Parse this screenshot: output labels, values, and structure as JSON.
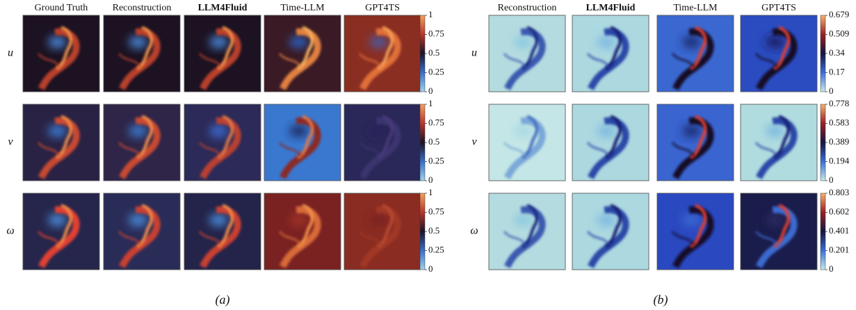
{
  "panels": [
    {
      "columns": [
        "Ground Truth",
        "Reconstruction",
        "LLM4Fluid",
        "Time-LLM",
        "GPT4TS"
      ],
      "rows": [
        {
          "label": "u",
          "colorbar_ticks": [
            0,
            0.25,
            0.5,
            0.75,
            1
          ]
        },
        {
          "label": "v",
          "colorbar_ticks": [
            0,
            0.25,
            0.5,
            0.75,
            1
          ]
        },
        {
          "label": "ω",
          "colorbar_ticks": [
            0,
            0.25,
            0.5,
            0.75,
            1
          ]
        }
      ],
      "caption": "(a)"
    },
    {
      "columns": [
        "Reconstruction",
        "LLM4Fluid",
        "Time-LLM",
        "GPT4TS"
      ],
      "rows": [
        {
          "label": "u",
          "colorbar_ticks": [
            0,
            0.17,
            0.34,
            0.509,
            0.679
          ]
        },
        {
          "label": "v",
          "colorbar_ticks": [
            0,
            0.194,
            0.389,
            0.583,
            0.778
          ]
        },
        {
          "label": "ω",
          "colorbar_ticks": [
            0,
            0.201,
            0.401,
            0.602,
            0.803
          ]
        }
      ],
      "caption": "(b)"
    }
  ]
}
